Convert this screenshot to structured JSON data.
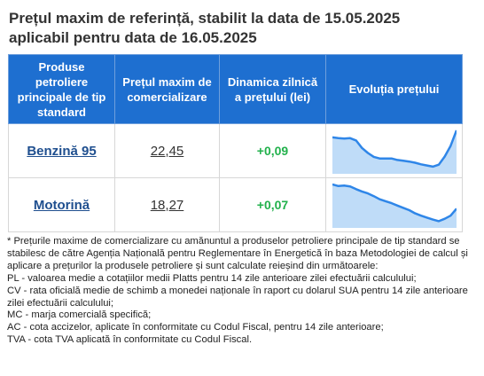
{
  "header": {
    "title_line1": "Prețul maxim de referință, stabilit la data de 15.05.2025",
    "title_line2": "aplicabil pentru data de 16.05.2025"
  },
  "table": {
    "columns": [
      "Produse petroliere principale de tip standard",
      "Prețul maxim de comercializare",
      "Dinamica zilnică a prețului (lei)",
      "Evoluția prețului"
    ],
    "rows": [
      {
        "product": "Benzină 95",
        "price": "22,45",
        "change": "+0,09",
        "trend": [
          0.82,
          0.8,
          0.79,
          0.8,
          0.74,
          0.55,
          0.42,
          0.32,
          0.28,
          0.28,
          0.28,
          0.24,
          0.22,
          0.2,
          0.17,
          0.13,
          0.1,
          0.07,
          0.12,
          0.33,
          0.6,
          1.0
        ]
      },
      {
        "product": "Motorină",
        "price": "18,27",
        "change": "+0,07",
        "trend": [
          1.0,
          0.96,
          0.97,
          0.95,
          0.88,
          0.82,
          0.77,
          0.7,
          0.62,
          0.57,
          0.52,
          0.46,
          0.4,
          0.34,
          0.26,
          0.2,
          0.15,
          0.1,
          0.06,
          0.12,
          0.2,
          0.38
        ]
      }
    ],
    "colors": {
      "header_bg": "#1e6fd0",
      "link": "#1f4f8f",
      "positive": "#22b14c",
      "trend_line": "#2f86e8",
      "trend_fill": "#bfdcf8"
    }
  },
  "notes": [
    "* Prețurile maxime de comercializare cu amănuntul a produselor petroliere principale de tip standard se stabilesc de către Agenția Națională pentru Reglementare în Energetică în baza Metodologiei de calcul și aplicare a prețurilor la produsele petroliere și sunt calculate reieșind din următoarele:",
    "PL - valoarea medie a cotațiilor medii Platts pentru 14 zile anterioare zilei efectuării calculului;",
    "CV - rata oficială medie de schimb a monedei naționale în raport cu dolarul SUA pentru 14 zile anterioare zilei efectuării calculului;",
    "MC - marja comercială specifică;",
    "AC - cota accizelor, aplicate în conformitate cu Codul Fiscal, pentru 14 zile anterioare;",
    "TVA - cota TVA aplicată în conformitate cu Codul Fiscal."
  ]
}
